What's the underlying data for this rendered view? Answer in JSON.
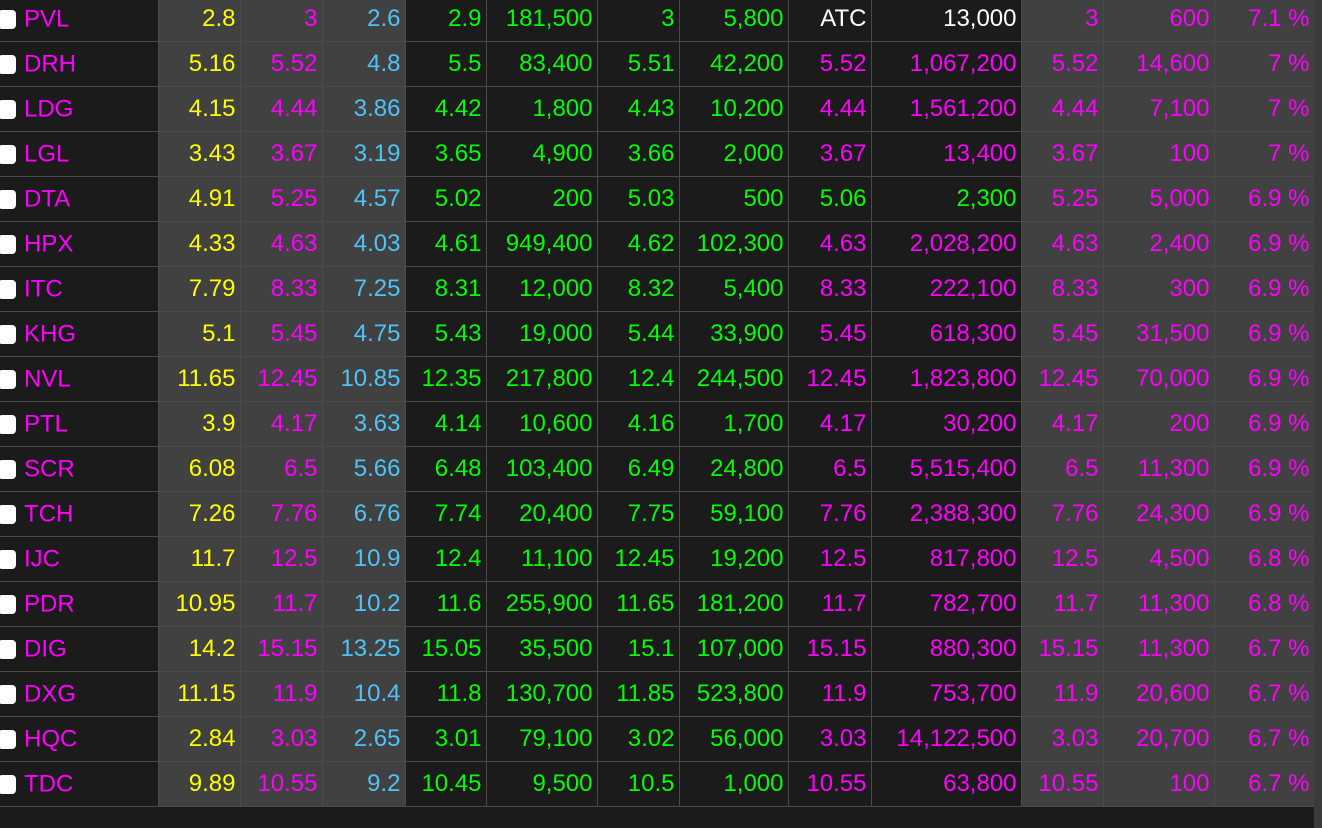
{
  "colors": {
    "reference": "#ffff00",
    "ceiling": "#ff00ff",
    "floor": "#4fc3f7",
    "up": "#00ff00",
    "neutral": "#ffffff"
  },
  "rows": [
    {
      "symbol": "PVL",
      "ref": "2.8",
      "ceil": "3",
      "floor": "2.6",
      "b_price": "2.9",
      "b_vol": "181,500",
      "s_price": "3",
      "s_vol": "5,800",
      "match_price": "ATC",
      "match_vol": "13,000",
      "high": "3",
      "high_vol": "600",
      "pct": "7.1 %",
      "match_color": "w",
      "s_color": "m"
    },
    {
      "symbol": "DRH",
      "ref": "5.16",
      "ceil": "5.52",
      "floor": "4.8",
      "b_price": "5.5",
      "b_vol": "83,400",
      "s_price": "5.51",
      "s_vol": "42,200",
      "match_price": "5.52",
      "match_vol": "1,067,200",
      "high": "5.52",
      "high_vol": "14,600",
      "pct": "7 %",
      "match_color": "m",
      "s_color": "gr"
    },
    {
      "symbol": "LDG",
      "ref": "4.15",
      "ceil": "4.44",
      "floor": "3.86",
      "b_price": "4.42",
      "b_vol": "1,800",
      "s_price": "4.43",
      "s_vol": "10,200",
      "match_price": "4.44",
      "match_vol": "1,561,200",
      "high": "4.44",
      "high_vol": "7,100",
      "pct": "7 %",
      "match_color": "m",
      "s_color": "gr"
    },
    {
      "symbol": "LGL",
      "ref": "3.43",
      "ceil": "3.67",
      "floor": "3.19",
      "b_price": "3.65",
      "b_vol": "4,900",
      "s_price": "3.66",
      "s_vol": "2,000",
      "match_price": "3.67",
      "match_vol": "13,400",
      "high": "3.67",
      "high_vol": "100",
      "pct": "7 %",
      "match_color": "m",
      "s_color": "gr"
    },
    {
      "symbol": "DTA",
      "ref": "4.91",
      "ceil": "5.25",
      "floor": "4.57",
      "b_price": "5.02",
      "b_vol": "200",
      "s_price": "5.03",
      "s_vol": "500",
      "match_price": "5.06",
      "match_vol": "2,300",
      "high": "5.25",
      "high_vol": "5,000",
      "pct": "6.9 %",
      "match_color": "gr",
      "s_color": "gr"
    },
    {
      "symbol": "HPX",
      "ref": "4.33",
      "ceil": "4.63",
      "floor": "4.03",
      "b_price": "4.61",
      "b_vol": "949,400",
      "s_price": "4.62",
      "s_vol": "102,300",
      "match_price": "4.63",
      "match_vol": "2,028,200",
      "high": "4.63",
      "high_vol": "2,400",
      "pct": "6.9 %",
      "match_color": "m",
      "s_color": "gr"
    },
    {
      "symbol": "ITC",
      "ref": "7.79",
      "ceil": "8.33",
      "floor": "7.25",
      "b_price": "8.31",
      "b_vol": "12,000",
      "s_price": "8.32",
      "s_vol": "5,400",
      "match_price": "8.33",
      "match_vol": "222,100",
      "high": "8.33",
      "high_vol": "300",
      "pct": "6.9 %",
      "match_color": "m",
      "s_color": "gr"
    },
    {
      "symbol": "KHG",
      "ref": "5.1",
      "ceil": "5.45",
      "floor": "4.75",
      "b_price": "5.43",
      "b_vol": "19,000",
      "s_price": "5.44",
      "s_vol": "33,900",
      "match_price": "5.45",
      "match_vol": "618,300",
      "high": "5.45",
      "high_vol": "31,500",
      "pct": "6.9 %",
      "match_color": "m",
      "s_color": "gr"
    },
    {
      "symbol": "NVL",
      "ref": "11.65",
      "ceil": "12.45",
      "floor": "10.85",
      "b_price": "12.35",
      "b_vol": "217,800",
      "s_price": "12.4",
      "s_vol": "244,500",
      "match_price": "12.45",
      "match_vol": "1,823,800",
      "high": "12.45",
      "high_vol": "70,000",
      "pct": "6.9 %",
      "match_color": "m",
      "s_color": "gr"
    },
    {
      "symbol": "PTL",
      "ref": "3.9",
      "ceil": "4.17",
      "floor": "3.63",
      "b_price": "4.14",
      "b_vol": "10,600",
      "s_price": "4.16",
      "s_vol": "1,700",
      "match_price": "4.17",
      "match_vol": "30,200",
      "high": "4.17",
      "high_vol": "200",
      "pct": "6.9 %",
      "match_color": "m",
      "s_color": "gr"
    },
    {
      "symbol": "SCR",
      "ref": "6.08",
      "ceil": "6.5",
      "floor": "5.66",
      "b_price": "6.48",
      "b_vol": "103,400",
      "s_price": "6.49",
      "s_vol": "24,800",
      "match_price": "6.5",
      "match_vol": "5,515,400",
      "high": "6.5",
      "high_vol": "11,300",
      "pct": "6.9 %",
      "match_color": "m",
      "s_color": "gr"
    },
    {
      "symbol": "TCH",
      "ref": "7.26",
      "ceil": "7.76",
      "floor": "6.76",
      "b_price": "7.74",
      "b_vol": "20,400",
      "s_price": "7.75",
      "s_vol": "59,100",
      "match_price": "7.76",
      "match_vol": "2,388,300",
      "high": "7.76",
      "high_vol": "24,300",
      "pct": "6.9 %",
      "match_color": "m",
      "s_color": "gr"
    },
    {
      "symbol": "IJC",
      "ref": "11.7",
      "ceil": "12.5",
      "floor": "10.9",
      "b_price": "12.4",
      "b_vol": "11,100",
      "s_price": "12.45",
      "s_vol": "19,200",
      "match_price": "12.5",
      "match_vol": "817,800",
      "high": "12.5",
      "high_vol": "4,500",
      "pct": "6.8 %",
      "match_color": "m",
      "s_color": "gr"
    },
    {
      "symbol": "PDR",
      "ref": "10.95",
      "ceil": "11.7",
      "floor": "10.2",
      "b_price": "11.6",
      "b_vol": "255,900",
      "s_price": "11.65",
      "s_vol": "181,200",
      "match_price": "11.7",
      "match_vol": "782,700",
      "high": "11.7",
      "high_vol": "11,300",
      "pct": "6.8 %",
      "match_color": "m",
      "s_color": "gr"
    },
    {
      "symbol": "DIG",
      "ref": "14.2",
      "ceil": "15.15",
      "floor": "13.25",
      "b_price": "15.05",
      "b_vol": "35,500",
      "s_price": "15.1",
      "s_vol": "107,000",
      "match_price": "15.15",
      "match_vol": "880,300",
      "high": "15.15",
      "high_vol": "11,300",
      "pct": "6.7 %",
      "match_color": "m",
      "s_color": "gr"
    },
    {
      "symbol": "DXG",
      "ref": "11.15",
      "ceil": "11.9",
      "floor": "10.4",
      "b_price": "11.8",
      "b_vol": "130,700",
      "s_price": "11.85",
      "s_vol": "523,800",
      "match_price": "11.9",
      "match_vol": "753,700",
      "high": "11.9",
      "high_vol": "20,600",
      "pct": "6.7 %",
      "match_color": "m",
      "s_color": "gr"
    },
    {
      "symbol": "HQC",
      "ref": "2.84",
      "ceil": "3.03",
      "floor": "2.65",
      "b_price": "3.01",
      "b_vol": "79,100",
      "s_price": "3.02",
      "s_vol": "56,000",
      "match_price": "3.03",
      "match_vol": "14,122,500",
      "high": "3.03",
      "high_vol": "20,700",
      "pct": "6.7 %",
      "match_color": "m",
      "s_color": "gr"
    },
    {
      "symbol": "TDC",
      "ref": "9.89",
      "ceil": "10.55",
      "floor": "9.2",
      "b_price": "10.45",
      "b_vol": "9,500",
      "s_price": "10.5",
      "s_vol": "1,000",
      "match_price": "10.55",
      "match_vol": "63,800",
      "high": "10.55",
      "high_vol": "100",
      "pct": "6.7 %",
      "match_color": "m",
      "s_color": "gr"
    }
  ]
}
